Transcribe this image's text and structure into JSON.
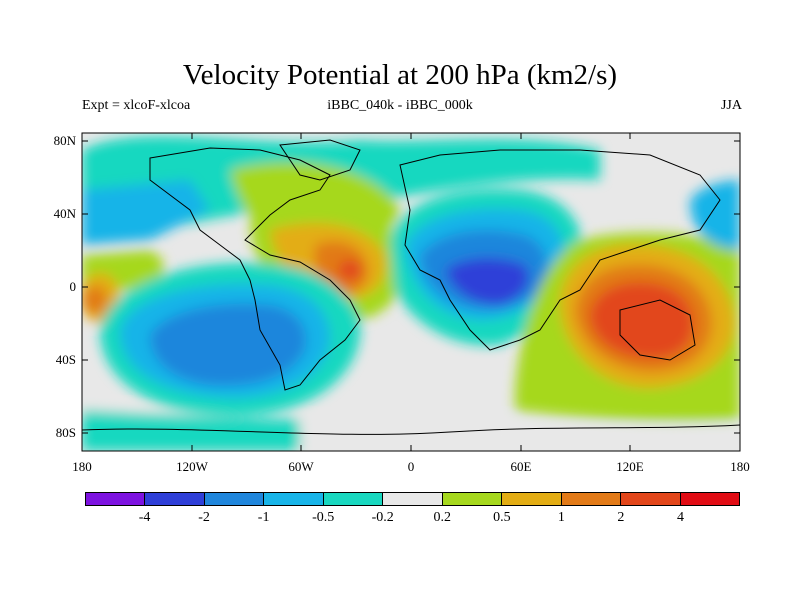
{
  "title": "Velocity Potential at 200 hPa (km2/s)",
  "left_label": "Expt = xlcoF-xlcoa",
  "center_label": "iBBC_040k - iBBC_000k",
  "right_label": "JJA",
  "lat_ticks": [
    "80N",
    "40N",
    "0",
    "40S",
    "80S"
  ],
  "lon_ticks": [
    "180",
    "120W",
    "60W",
    "0",
    "60E",
    "120E",
    "180"
  ],
  "colorbar": {
    "labels": [
      "-4",
      "-2",
      "-1",
      "-0.5",
      "-0.2",
      "0.2",
      "0.5",
      "1",
      "2",
      "4"
    ],
    "colors": [
      "#7d12e0",
      "#2f3fd8",
      "#1f86dc",
      "#18b4e8",
      "#19d8c0",
      "#e8e8e8",
      "#a6d81e",
      "#e3ad14",
      "#e27a18",
      "#e2461a",
      "#e10c14"
    ]
  }
}
